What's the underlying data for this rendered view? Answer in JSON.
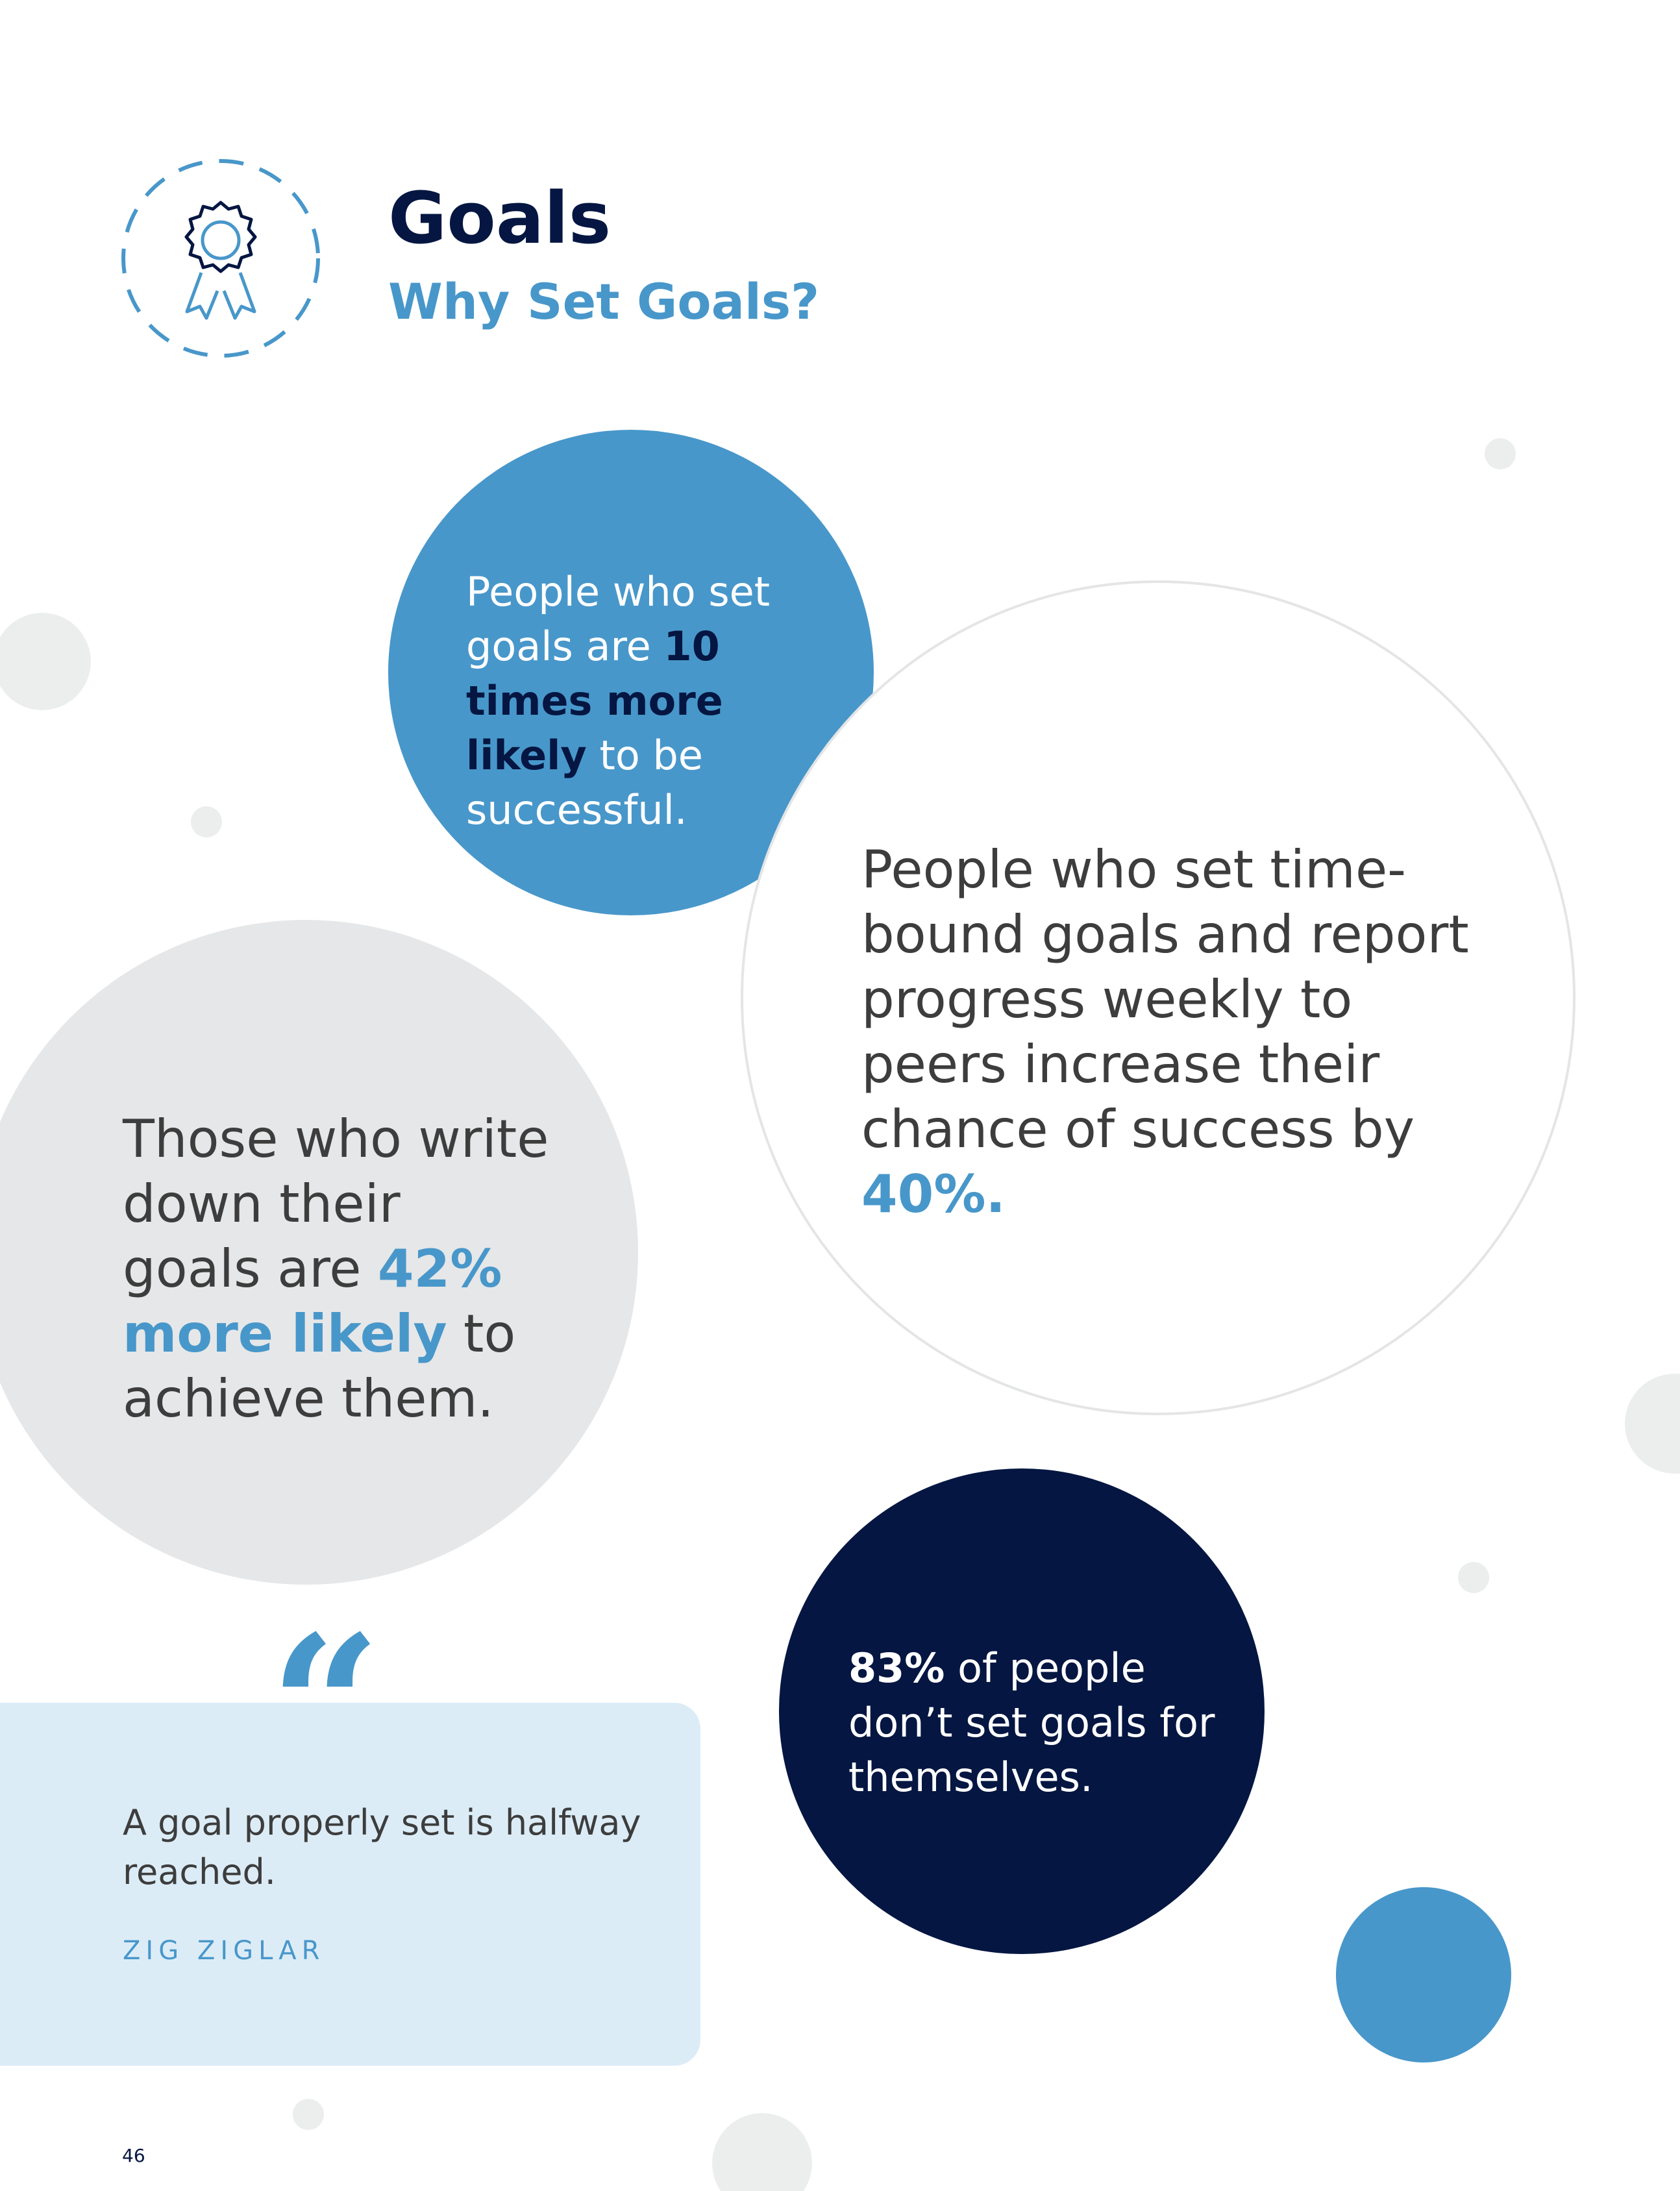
{
  "header": {
    "title": "Goals",
    "subtitle": "Why Set Goals?"
  },
  "stats": [
    {
      "before": "People who set goals are ",
      "highlight": "10 times more likely",
      "after": " to be successful."
    },
    {
      "before": "People who set time-bound goals and report progress weekly to peers increase their chance of success by ",
      "highlight": "40%.",
      "after": ""
    },
    {
      "before": "Those who write down their goals are ",
      "highlight": "42% more likely",
      "after": " to achieve them."
    },
    {
      "before": "",
      "highlight": "83%",
      "after": " of people don’t set goals for themselves."
    }
  ],
  "quote": {
    "mark": "“",
    "text": "A goal properly set is halfway reached.",
    "author": "ZIG ZIGLAR"
  },
  "page_number": "46"
}
